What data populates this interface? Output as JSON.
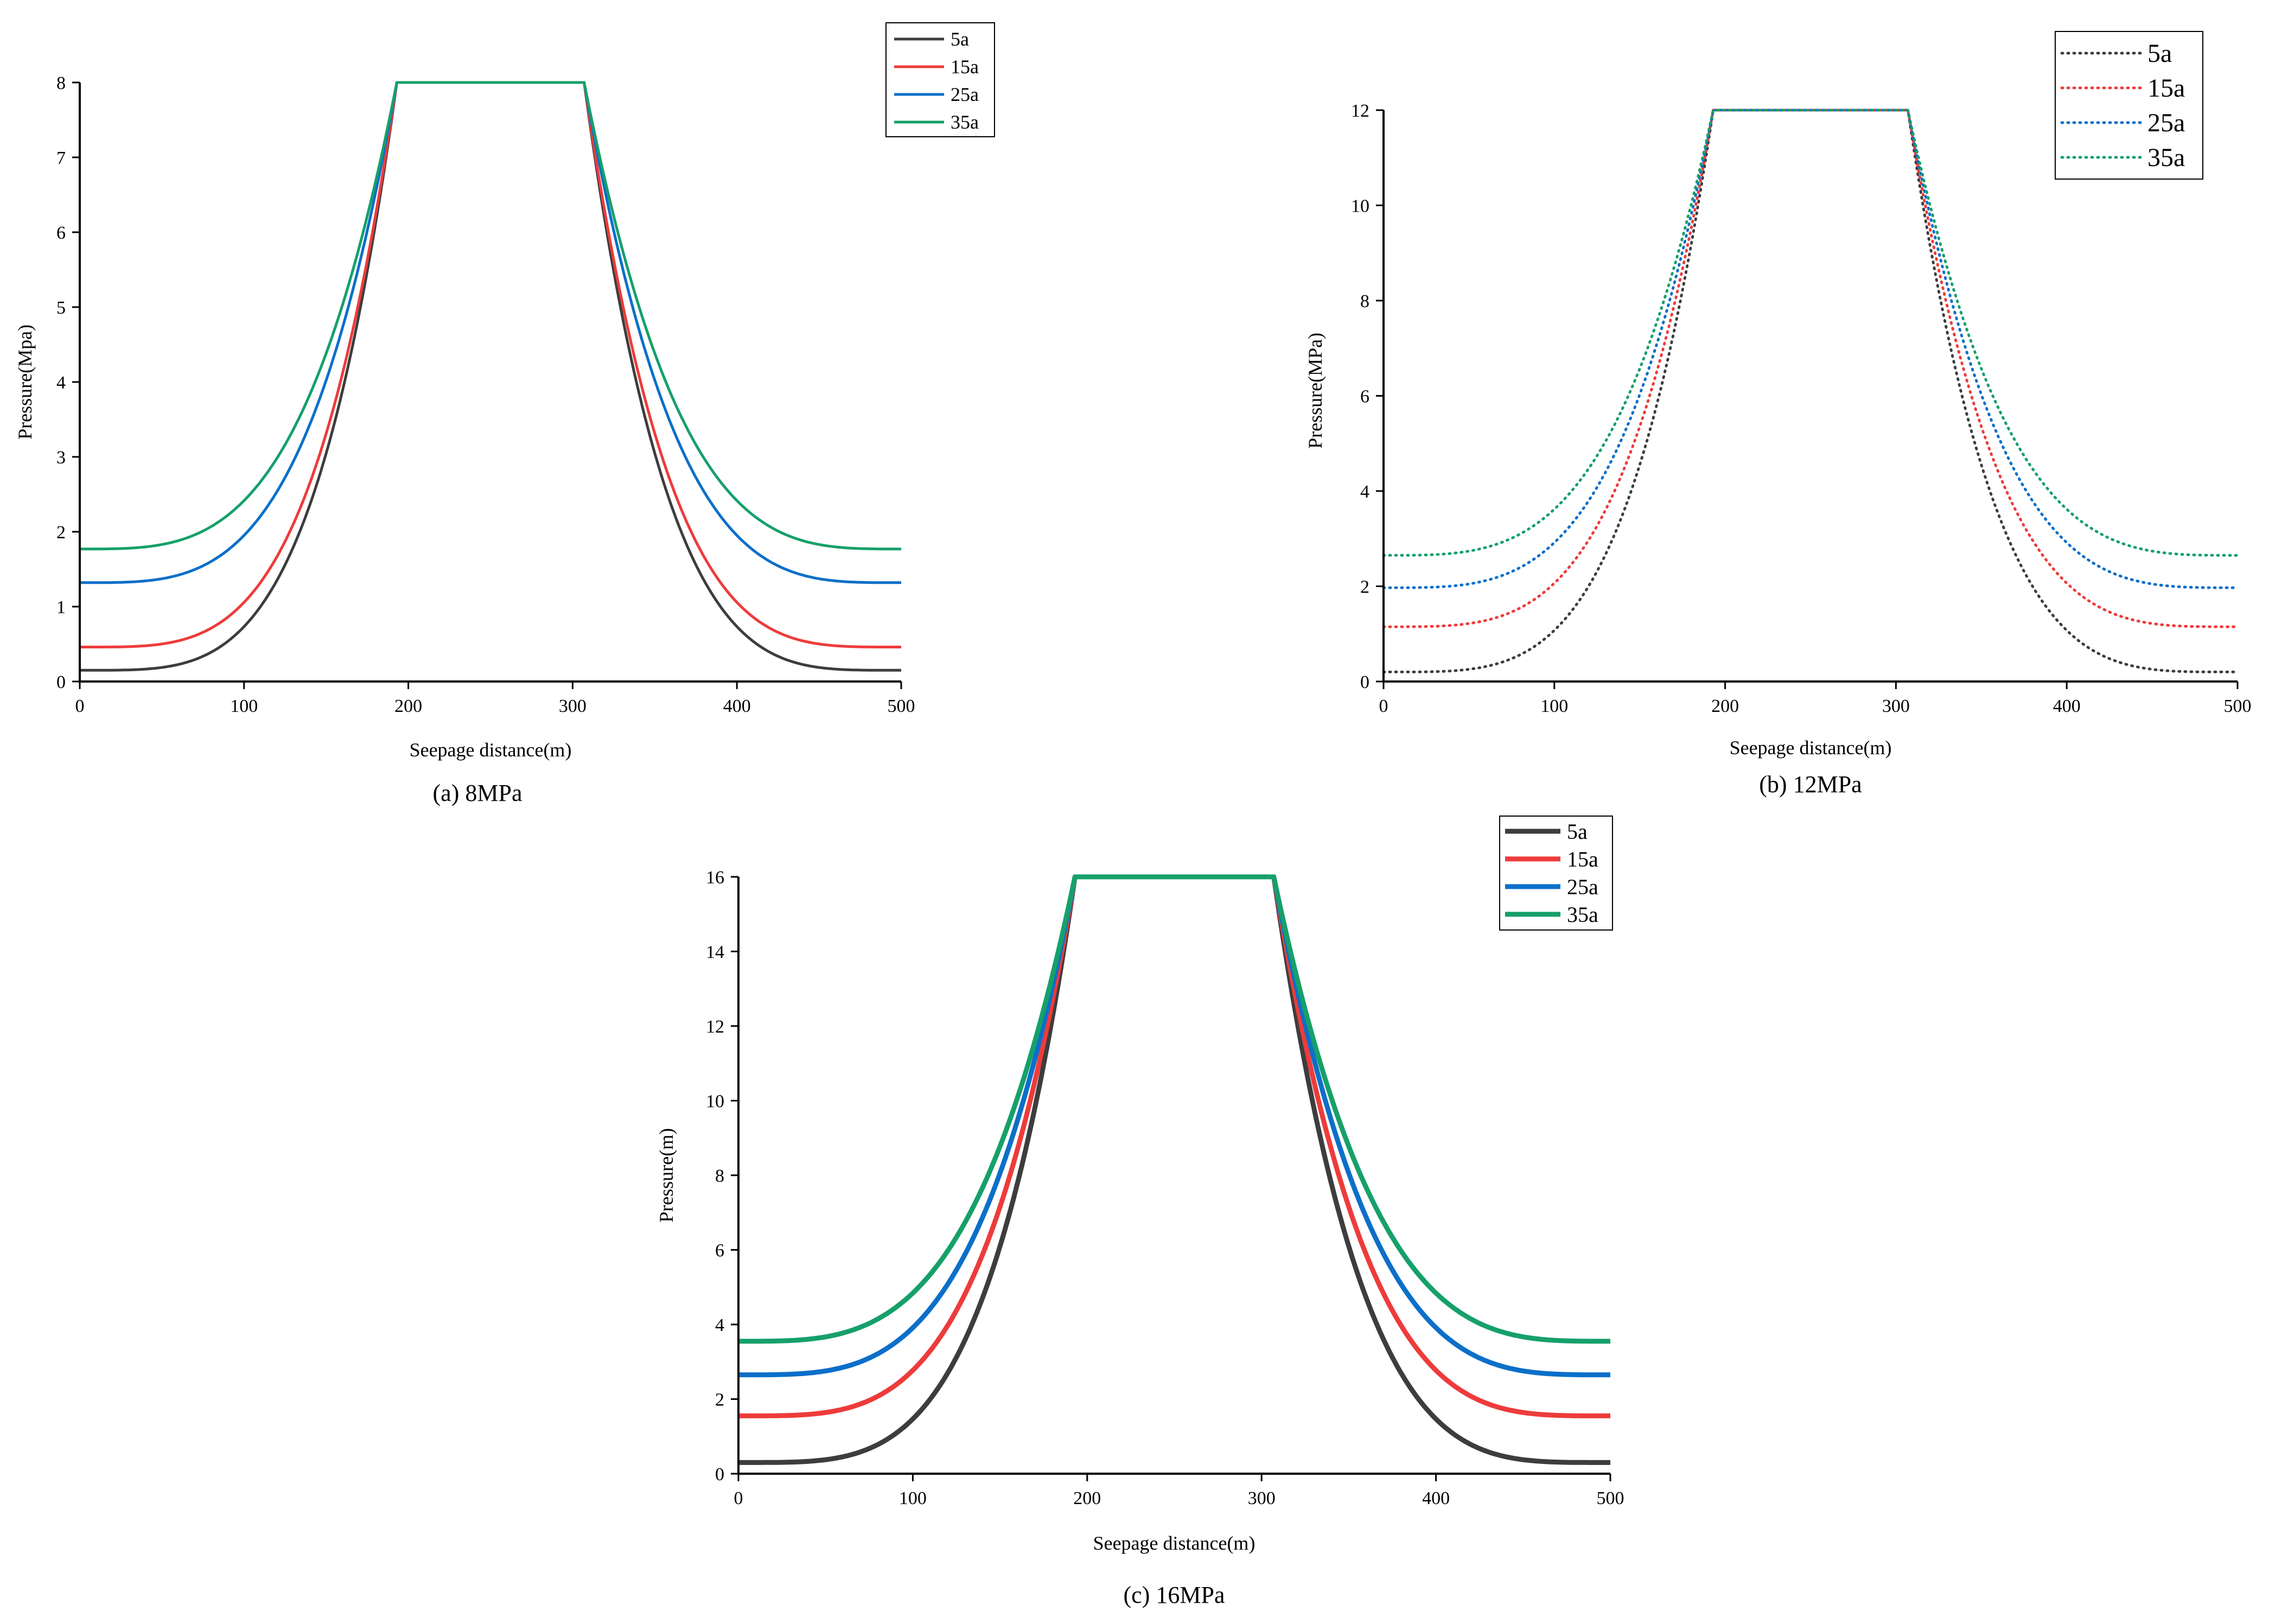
{
  "figure": {
    "panels": [
      {
        "caption": "(a) 8MPa"
      },
      {
        "caption": "(b) 12MPa"
      },
      {
        "caption": "(c) 16MPa"
      }
    ]
  },
  "chart_data": [
    {
      "type": "line",
      "panel": "a",
      "caption": "(a) 8MPa",
      "xlabel": "Seepage distance(m)",
      "ylabel": "Pressure(Mpa)",
      "xlim": [
        0,
        500
      ],
      "ylim": [
        0,
        8
      ],
      "xticks": [
        0,
        100,
        200,
        300,
        400,
        500
      ],
      "yticks": [
        0,
        1,
        2,
        3,
        4,
        5,
        6,
        7,
        8
      ],
      "grid": false,
      "legend": "top-right",
      "line_style": "solid",
      "peak": 8,
      "plateau": [
        193,
        307
      ],
      "series": [
        {
          "name": "5a",
          "color": "#3d3d3d",
          "x": [
            0,
            193,
            307,
            500
          ],
          "values": [
            0.15,
            8,
            8,
            0.15
          ]
        },
        {
          "name": "15a",
          "color": "#ee3b3b",
          "x": [
            0,
            193,
            307,
            500
          ],
          "values": [
            0.46,
            8,
            8,
            0.46
          ]
        },
        {
          "name": "25a",
          "color": "#0b6fc9",
          "x": [
            0,
            193,
            307,
            500
          ],
          "values": [
            1.32,
            8,
            8,
            1.32
          ]
        },
        {
          "name": "35a",
          "color": "#16a06a",
          "x": [
            0,
            193,
            307,
            500
          ],
          "values": [
            1.77,
            8,
            8,
            1.77
          ]
        }
      ]
    },
    {
      "type": "line",
      "panel": "b",
      "caption": "(b) 12MPa",
      "xlabel": "Seepage distance(m)",
      "ylabel": "Pressure(MPa)",
      "xlim": [
        0,
        500
      ],
      "ylim": [
        0,
        12
      ],
      "xticks": [
        0,
        100,
        200,
        300,
        400,
        500
      ],
      "yticks": [
        0,
        2,
        4,
        6,
        8,
        10,
        12
      ],
      "grid": false,
      "legend": "top-right",
      "line_style": "dotted",
      "peak": 12,
      "plateau": [
        193,
        307
      ],
      "series": [
        {
          "name": "5a",
          "color": "#3d3d3d",
          "x": [
            0,
            193,
            307,
            500
          ],
          "values": [
            0.2,
            12,
            12,
            0.2
          ]
        },
        {
          "name": "15a",
          "color": "#ee3b3b",
          "x": [
            0,
            193,
            307,
            500
          ],
          "values": [
            1.15,
            12,
            12,
            1.15
          ]
        },
        {
          "name": "25a",
          "color": "#0b6fc9",
          "x": [
            0,
            193,
            307,
            500
          ],
          "values": [
            1.97,
            12,
            12,
            1.97
          ]
        },
        {
          "name": "35a",
          "color": "#16a06a",
          "x": [
            0,
            193,
            307,
            500
          ],
          "values": [
            2.65,
            12,
            12,
            2.65
          ]
        }
      ]
    },
    {
      "type": "line",
      "panel": "c",
      "caption": "(c) 16MPa",
      "xlabel": "Seepage distance(m)",
      "ylabel": "Pressure(m)",
      "xlim": [
        0,
        500
      ],
      "ylim": [
        0,
        16
      ],
      "xticks": [
        0,
        100,
        200,
        300,
        400,
        500
      ],
      "yticks": [
        0,
        2,
        4,
        6,
        8,
        10,
        12,
        14,
        16
      ],
      "grid": false,
      "legend": "top-right",
      "line_style": "solid-thick",
      "peak": 16,
      "plateau": [
        193,
        307
      ],
      "series": [
        {
          "name": "5a",
          "color": "#3d3d3d",
          "x": [
            0,
            193,
            307,
            500
          ],
          "values": [
            0.3,
            16,
            16,
            0.3
          ]
        },
        {
          "name": "15a",
          "color": "#ee3b3b",
          "x": [
            0,
            193,
            307,
            500
          ],
          "values": [
            1.55,
            16,
            16,
            1.55
          ]
        },
        {
          "name": "25a",
          "color": "#0b6fc9",
          "x": [
            0,
            193,
            307,
            500
          ],
          "values": [
            2.65,
            16,
            16,
            2.65
          ]
        },
        {
          "name": "35a",
          "color": "#16a06a",
          "x": [
            0,
            193,
            307,
            500
          ],
          "values": [
            3.55,
            16,
            16,
            3.55
          ]
        }
      ]
    }
  ]
}
